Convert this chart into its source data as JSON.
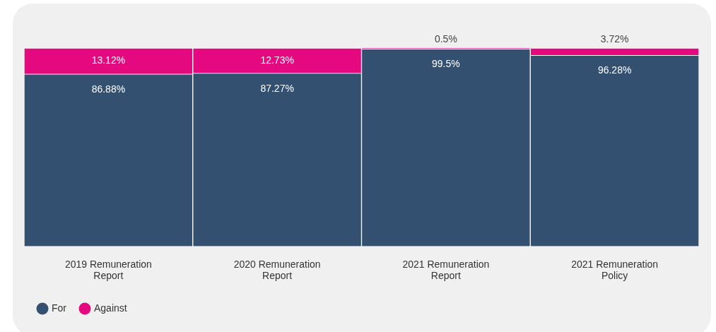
{
  "chart_data": {
    "type": "bar",
    "stacked": true,
    "categories": [
      "2019 Remuneration Report",
      "2020 Remuneration Report",
      "2021 Remuneration Report",
      "2021 Remuneration Policy"
    ],
    "ylim": [
      0,
      100
    ],
    "tick_labels": "x",
    "legend": "bottom left",
    "grid": false,
    "series": [
      {
        "name": "For",
        "color": "#335071",
        "values": [
          86.88,
          87.27,
          99.5,
          96.28
        ],
        "value_labels": [
          "86.88%",
          "87.27%",
          "99.5%",
          "96.28%"
        ]
      },
      {
        "name": "Against",
        "color": "#e5097f",
        "values": [
          13.12,
          12.73,
          0.5,
          3.72
        ],
        "value_labels": [
          "13.12%",
          "12.73%",
          "0.5%",
          "3.72%"
        ]
      }
    ]
  }
}
